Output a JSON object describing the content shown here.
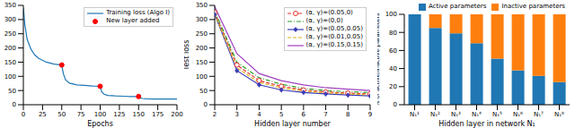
{
  "chart_data": [
    {
      "type": "line",
      "xlabel": "Epochs",
      "grid": false,
      "legend": "upper right",
      "x": [
        0,
        2,
        5,
        10,
        15,
        20,
        30,
        40,
        50,
        52,
        55,
        60,
        70,
        80,
        90,
        100,
        102,
        105,
        110,
        120,
        130,
        140,
        150,
        152,
        155,
        160,
        170,
        180,
        190,
        200
      ],
      "xlim": [
        0,
        200
      ],
      "xticks": [
        0,
        25,
        50,
        75,
        100,
        125,
        150,
        175,
        200
      ],
      "ylim": [
        0,
        350
      ],
      "yticks": [
        0,
        50,
        100,
        150,
        200,
        250,
        300,
        350
      ],
      "series": [
        {
          "name": "Training loss (Algo I)",
          "type": "line",
          "color": "#1f77b4",
          "line_style": "solid",
          "marker": "none",
          "values": [
            340,
            280,
            230,
            195,
            175,
            163,
            150,
            143,
            140,
            110,
            88,
            76,
            70,
            68,
            66,
            65,
            45,
            37,
            33,
            31,
            30,
            29,
            29,
            24,
            22,
            21,
            20,
            20,
            20,
            20
          ]
        },
        {
          "name": "New layer added",
          "type": "scatter",
          "color": "#ff0000",
          "marker": "circle",
          "values": [
            null,
            null,
            null,
            null,
            null,
            null,
            null,
            null,
            140,
            null,
            null,
            null,
            null,
            null,
            null,
            65,
            null,
            null,
            null,
            null,
            null,
            null,
            29,
            null,
            null,
            null,
            null,
            null,
            null,
            null
          ]
        }
      ]
    },
    {
      "type": "line",
      "xlabel": "Hidden layer number",
      "ylabel": "Test loss",
      "grid": false,
      "legend": "upper right",
      "x": [
        2,
        3,
        4,
        5,
        6,
        7,
        8,
        9
      ],
      "xlim": [
        2,
        9
      ],
      "xticks": [
        2,
        3,
        4,
        5,
        6,
        7,
        8,
        9
      ],
      "ylim": [
        0,
        350
      ],
      "yticks": [
        0,
        50,
        100,
        150,
        200,
        250,
        300,
        350
      ],
      "series": [
        {
          "name": "(α, γ)=(0.05,0)",
          "color": "#e8302a",
          "line_style": "dashed",
          "marker": "hollow_circle",
          "values": [
            325,
            140,
            85,
            65,
            52,
            45,
            41,
            38
          ]
        },
        {
          "name": "(α, γ)=(0,0)",
          "color": "#2ca02c",
          "line_style": "dashdot",
          "marker": "none",
          "values": [
            330,
            150,
            95,
            72,
            58,
            50,
            46,
            43
          ]
        },
        {
          "name": "(α, γ)=(0.05,0.05)",
          "color": "#3b3bb8",
          "line_style": "solid",
          "marker": "diamond",
          "values": [
            318,
            120,
            70,
            52,
            43,
            38,
            34,
            31
          ]
        },
        {
          "name": "(α, γ)=(0.01,0.05)",
          "color": "#e0b020",
          "line_style": "dashed",
          "marker": "none",
          "values": [
            320,
            130,
            78,
            60,
            48,
            42,
            38,
            35
          ]
        },
        {
          "name": "(α, γ)=(0.15,0.15)",
          "color": "#a040c0",
          "line_style": "solid",
          "marker": "none",
          "values": [
            345,
            180,
            110,
            85,
            70,
            60,
            55,
            50
          ]
        }
      ]
    },
    {
      "type": "bar",
      "stacked": true,
      "xlabel": "Hidden layer in network N₁",
      "ylabel": "% of active/inactive parameters",
      "grid": false,
      "legend": "upper right",
      "categories": [
        "N₁¹",
        "N₁²",
        "N₁³",
        "N₁⁴",
        "N₁⁵",
        "N₁⁶",
        "N₁⁷",
        "N₁⁸"
      ],
      "ylim": [
        0,
        100
      ],
      "yticks": [
        0,
        20,
        40,
        60,
        80,
        100
      ],
      "series": [
        {
          "name": "Active parameters",
          "color": "#1f77b4",
          "values": [
            100,
            85,
            79,
            68,
            51,
            38,
            32,
            25
          ]
        },
        {
          "name": "Inactive parameters",
          "color": "#ff7f0e",
          "values": [
            0,
            15,
            21,
            32,
            49,
            62,
            68,
            75
          ]
        }
      ]
    }
  ]
}
